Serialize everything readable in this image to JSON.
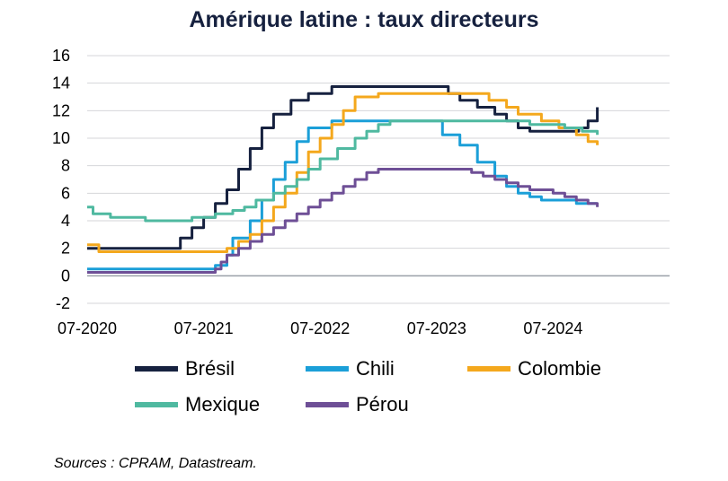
{
  "chart_data": {
    "type": "line",
    "title": "Amérique latine : taux directeurs",
    "xlabel": "",
    "ylabel": "",
    "ylim": [
      -2,
      16
    ],
    "yticks": [
      16,
      14,
      12,
      10,
      8,
      6,
      4,
      2,
      0,
      -2
    ],
    "xlim": [
      2020.5,
      2025.5
    ],
    "xticks": [
      2020.5,
      2021.5,
      2022.5,
      2023.5,
      2024.5
    ],
    "xtick_labels": [
      "07-2020",
      "07-2021",
      "07-2022",
      "07-2023",
      "07-2024"
    ],
    "grid": true,
    "legend_position": "bottom",
    "series": [
      {
        "name": "Brésil",
        "color": "#16213f",
        "points": [
          [
            2020.5,
            2.0
          ],
          [
            2021.2,
            2.0
          ],
          [
            2021.3,
            2.75
          ],
          [
            2021.4,
            3.5
          ],
          [
            2021.5,
            4.25
          ],
          [
            2021.6,
            5.25
          ],
          [
            2021.7,
            6.25
          ],
          [
            2021.8,
            7.75
          ],
          [
            2021.9,
            9.25
          ],
          [
            2022.0,
            10.75
          ],
          [
            2022.1,
            11.75
          ],
          [
            2022.25,
            12.75
          ],
          [
            2022.4,
            13.25
          ],
          [
            2022.6,
            13.75
          ],
          [
            2023.5,
            13.75
          ],
          [
            2023.6,
            13.25
          ],
          [
            2023.7,
            12.75
          ],
          [
            2023.85,
            12.25
          ],
          [
            2024.0,
            11.75
          ],
          [
            2024.1,
            11.25
          ],
          [
            2024.2,
            10.75
          ],
          [
            2024.3,
            10.5
          ],
          [
            2024.7,
            10.5
          ],
          [
            2024.72,
            10.75
          ],
          [
            2024.8,
            11.25
          ],
          [
            2024.88,
            12.25
          ]
        ]
      },
      {
        "name": "Chili",
        "color": "#1b9fd8",
        "points": [
          [
            2020.5,
            0.5
          ],
          [
            2021.5,
            0.5
          ],
          [
            2021.6,
            0.75
          ],
          [
            2021.7,
            1.5
          ],
          [
            2021.75,
            2.75
          ],
          [
            2021.9,
            4.0
          ],
          [
            2022.0,
            5.5
          ],
          [
            2022.1,
            7.0
          ],
          [
            2022.2,
            8.25
          ],
          [
            2022.3,
            9.75
          ],
          [
            2022.4,
            10.75
          ],
          [
            2022.6,
            11.25
          ],
          [
            2023.5,
            11.25
          ],
          [
            2023.55,
            10.25
          ],
          [
            2023.7,
            9.5
          ],
          [
            2023.85,
            8.25
          ],
          [
            2024.0,
            7.25
          ],
          [
            2024.1,
            6.5
          ],
          [
            2024.2,
            6.0
          ],
          [
            2024.3,
            5.75
          ],
          [
            2024.4,
            5.5
          ],
          [
            2024.6,
            5.5
          ],
          [
            2024.7,
            5.25
          ],
          [
            2024.88,
            5.25
          ]
        ]
      },
      {
        "name": "Colombie",
        "color": "#f4a81d",
        "points": [
          [
            2020.5,
            2.25
          ],
          [
            2020.6,
            1.75
          ],
          [
            2021.6,
            1.75
          ],
          [
            2021.7,
            2.0
          ],
          [
            2021.8,
            2.5
          ],
          [
            2021.9,
            3.0
          ],
          [
            2022.0,
            4.0
          ],
          [
            2022.1,
            5.0
          ],
          [
            2022.2,
            6.0
          ],
          [
            2022.3,
            7.5
          ],
          [
            2022.4,
            9.0
          ],
          [
            2022.5,
            10.0
          ],
          [
            2022.6,
            11.0
          ],
          [
            2022.7,
            12.0
          ],
          [
            2022.8,
            13.0
          ],
          [
            2023.0,
            13.25
          ],
          [
            2023.9,
            13.25
          ],
          [
            2023.95,
            12.75
          ],
          [
            2024.1,
            12.25
          ],
          [
            2024.2,
            11.75
          ],
          [
            2024.4,
            11.25
          ],
          [
            2024.55,
            10.75
          ],
          [
            2024.7,
            10.25
          ],
          [
            2024.8,
            9.75
          ],
          [
            2024.88,
            9.5
          ]
        ]
      },
      {
        "name": "Mexique",
        "color": "#4fb9a0",
        "points": [
          [
            2020.5,
            5.0
          ],
          [
            2020.55,
            4.5
          ],
          [
            2020.7,
            4.25
          ],
          [
            2021.0,
            4.0
          ],
          [
            2021.4,
            4.25
          ],
          [
            2021.6,
            4.5
          ],
          [
            2021.75,
            4.75
          ],
          [
            2021.85,
            5.0
          ],
          [
            2021.95,
            5.5
          ],
          [
            2022.1,
            6.0
          ],
          [
            2022.2,
            6.5
          ],
          [
            2022.3,
            7.0
          ],
          [
            2022.4,
            7.75
          ],
          [
            2022.5,
            8.5
          ],
          [
            2022.65,
            9.25
          ],
          [
            2022.8,
            10.0
          ],
          [
            2022.9,
            10.5
          ],
          [
            2023.0,
            11.0
          ],
          [
            2023.1,
            11.25
          ],
          [
            2024.2,
            11.25
          ],
          [
            2024.3,
            11.0
          ],
          [
            2024.6,
            10.75
          ],
          [
            2024.75,
            10.5
          ],
          [
            2024.88,
            10.25
          ]
        ]
      },
      {
        "name": "Pérou",
        "color": "#6e4f96",
        "points": [
          [
            2020.5,
            0.25
          ],
          [
            2021.5,
            0.25
          ],
          [
            2021.6,
            0.5
          ],
          [
            2021.65,
            1.0
          ],
          [
            2021.7,
            1.5
          ],
          [
            2021.8,
            2.0
          ],
          [
            2021.9,
            2.5
          ],
          [
            2022.0,
            3.0
          ],
          [
            2022.1,
            3.5
          ],
          [
            2022.2,
            4.0
          ],
          [
            2022.3,
            4.5
          ],
          [
            2022.4,
            5.0
          ],
          [
            2022.5,
            5.5
          ],
          [
            2022.6,
            6.0
          ],
          [
            2022.7,
            6.5
          ],
          [
            2022.8,
            7.0
          ],
          [
            2022.9,
            7.5
          ],
          [
            2023.0,
            7.75
          ],
          [
            2023.7,
            7.75
          ],
          [
            2023.8,
            7.5
          ],
          [
            2023.9,
            7.25
          ],
          [
            2024.0,
            7.0
          ],
          [
            2024.1,
            6.75
          ],
          [
            2024.2,
            6.5
          ],
          [
            2024.3,
            6.25
          ],
          [
            2024.5,
            6.0
          ],
          [
            2024.6,
            5.75
          ],
          [
            2024.7,
            5.5
          ],
          [
            2024.8,
            5.25
          ],
          [
            2024.88,
            5.0
          ]
        ]
      }
    ]
  },
  "legend": {
    "items": [
      {
        "label": "Brésil",
        "color": "#16213f"
      },
      {
        "label": "Chili",
        "color": "#1b9fd8"
      },
      {
        "label": "Colombie",
        "color": "#f4a81d"
      },
      {
        "label": "Mexique",
        "color": "#4fb9a0"
      },
      {
        "label": "Pérou",
        "color": "#6e4f96"
      }
    ]
  },
  "source": "Sources : CPRAM, Datastream."
}
